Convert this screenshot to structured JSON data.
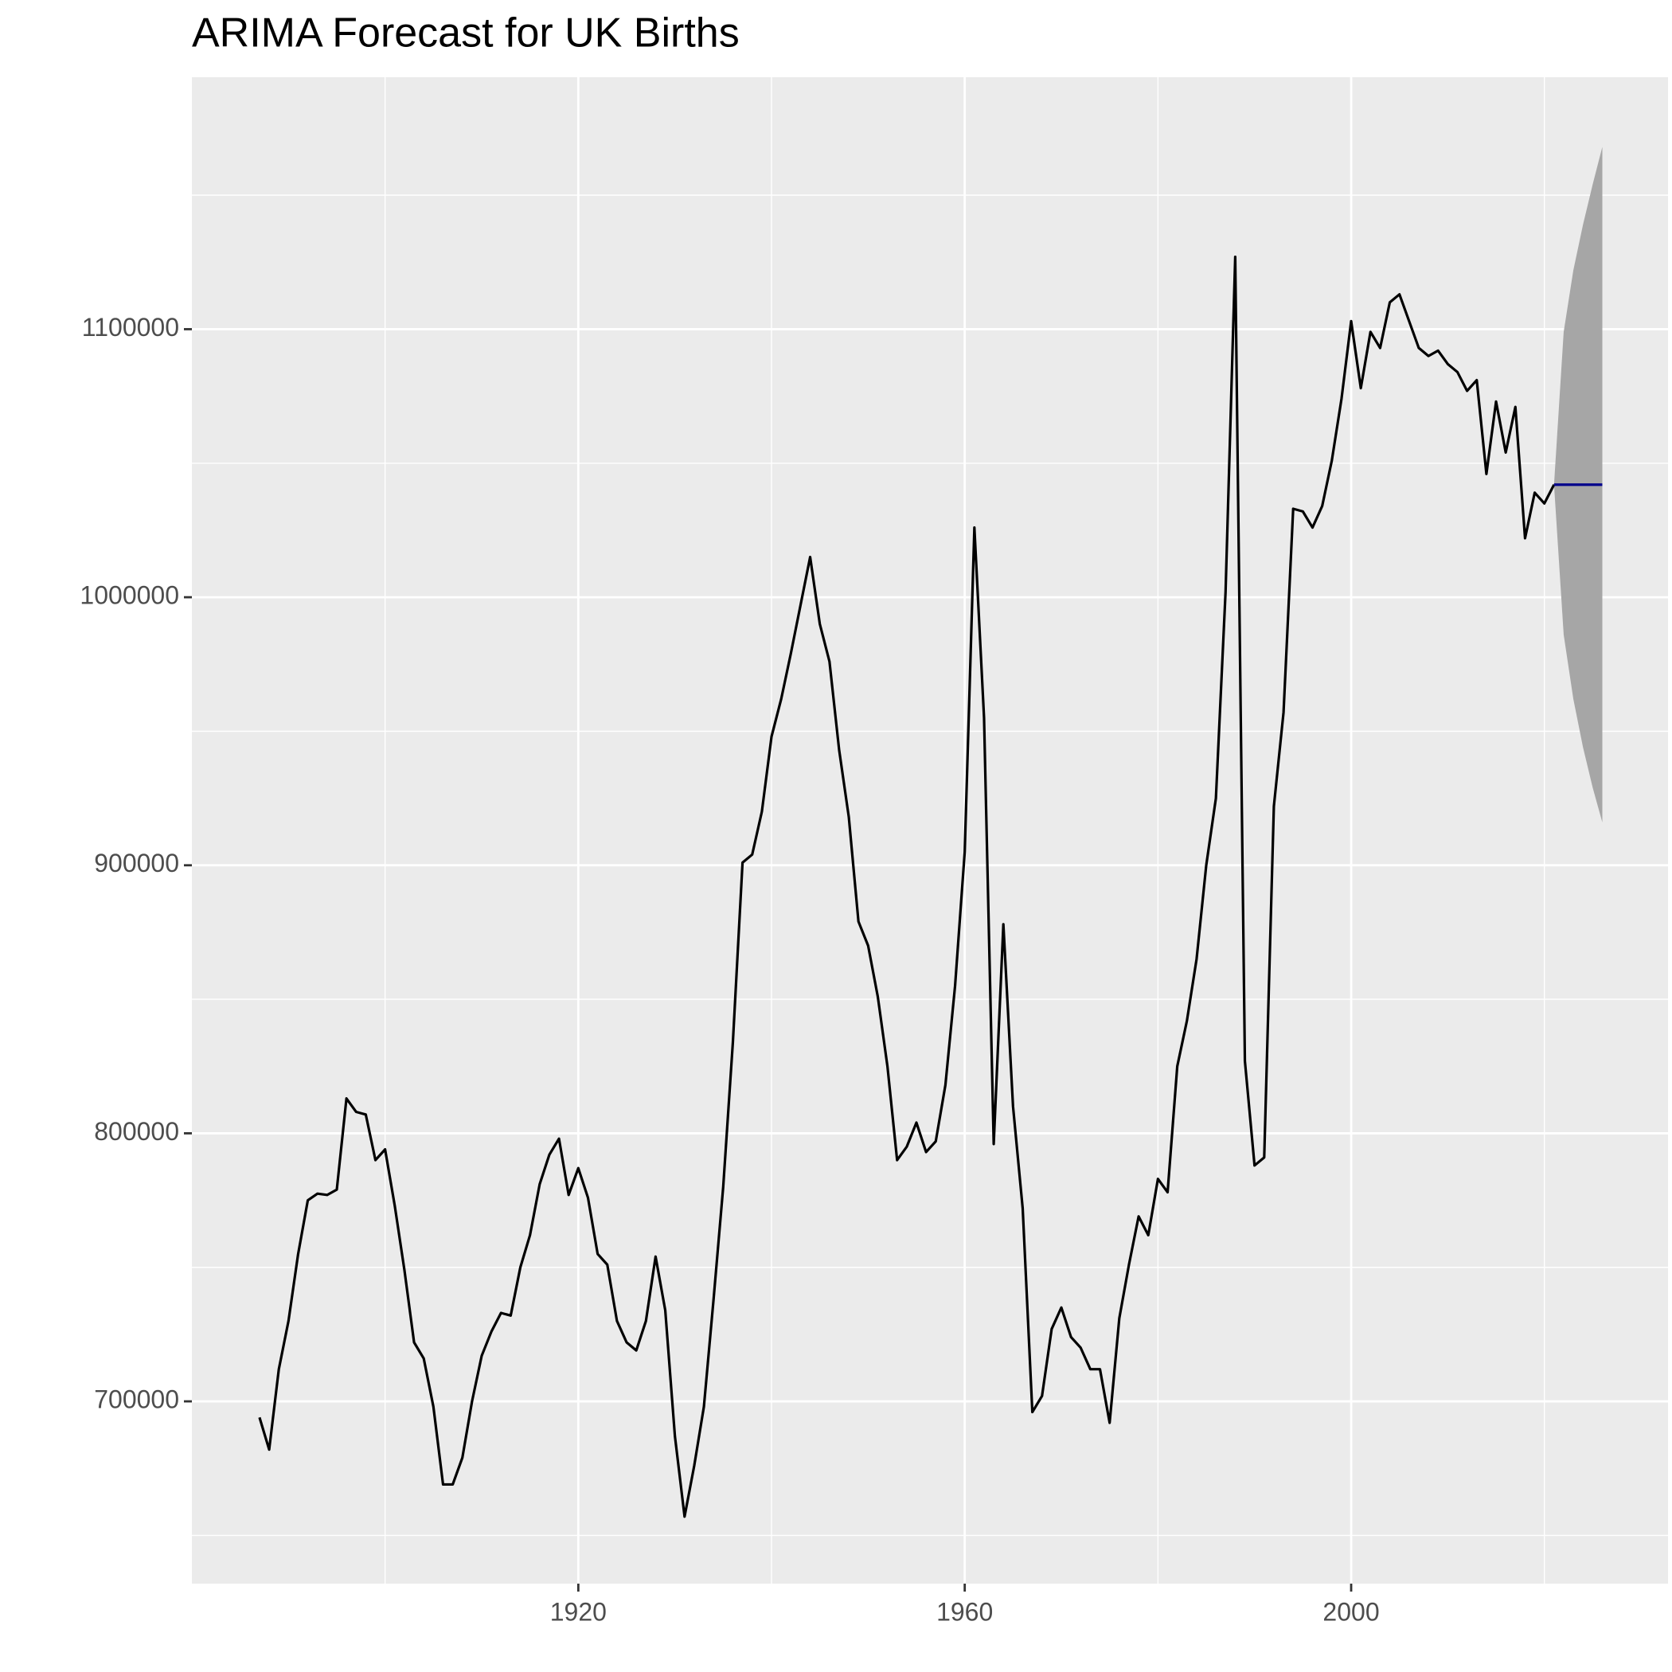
{
  "chart_data": {
    "type": "line",
    "title": "ARIMA Forecast for UK Births",
    "x": [
      1887,
      1888,
      1889,
      1890,
      1891,
      1892,
      1893,
      1894,
      1895,
      1896,
      1897,
      1898,
      1899,
      1900,
      1901,
      1902,
      1903,
      1904,
      1905,
      1906,
      1907,
      1908,
      1909,
      1910,
      1911,
      1912,
      1913,
      1914,
      1915,
      1916,
      1917,
      1918,
      1919,
      1920,
      1921,
      1922,
      1923,
      1924,
      1925,
      1926,
      1927,
      1928,
      1929,
      1930,
      1931,
      1932,
      1933,
      1934,
      1935,
      1936,
      1937,
      1938,
      1939,
      1940,
      1941,
      1942,
      1943,
      1944,
      1945,
      1946,
      1947,
      1948,
      1949,
      1950,
      1951,
      1952,
      1953,
      1954,
      1955,
      1956,
      1957,
      1958,
      1959,
      1960,
      1961,
      1962,
      1963,
      1964,
      1965,
      1966,
      1967,
      1968,
      1969,
      1970,
      1971,
      1972,
      1973,
      1974,
      1975,
      1976,
      1977,
      1978,
      1979,
      1980,
      1981,
      1982,
      1983,
      1984,
      1985,
      1986,
      1987,
      1988,
      1989,
      1990,
      1991,
      1992,
      1993,
      1994,
      1995,
      1996,
      1997,
      1998,
      1999,
      2000,
      2001,
      2002,
      2003,
      2004,
      2005,
      2006,
      2007,
      2008,
      2009,
      2010,
      2011,
      2012,
      2013,
      2014,
      2015,
      2016,
      2017,
      2018,
      2019,
      2020,
      2021
    ],
    "series": [
      {
        "color": "#000000",
        "values": [
          694000,
          682000,
          712000,
          730000,
          755000,
          775000,
          777500,
          777000,
          779000,
          813000,
          808000,
          807000,
          790000,
          794000,
          773000,
          749000,
          722000,
          716000,
          698000,
          669000,
          669000,
          679000,
          700000,
          717000,
          726000,
          733000,
          732000,
          750000,
          762000,
          781000,
          792000,
          798000,
          777000,
          787000,
          776000,
          755000,
          751000,
          730000,
          722000,
          719000,
          730000,
          754000,
          734000,
          687000,
          657000,
          676000,
          698000,
          738000,
          780000,
          834000,
          901000,
          904000,
          920000,
          948000,
          962000,
          979000,
          997000,
          1015000,
          990000,
          976000,
          943000,
          918000,
          879000,
          870000,
          851000,
          825000,
          790000,
          795000,
          804000,
          793000,
          797000,
          818000,
          855000,
          905000,
          1026000,
          955000,
          796000,
          878000,
          810000,
          772000,
          696000,
          702000,
          727000,
          735000,
          724000,
          720000,
          712000,
          712000,
          692000,
          731000,
          751000,
          769000,
          762000,
          783000,
          778000,
          825000,
          842000,
          865000,
          900000,
          925000,
          1002000,
          1127000,
          827000,
          788000,
          791000,
          922000,
          957000,
          1033000,
          1032000,
          1026000,
          1034000,
          1051000,
          1074000,
          1103000,
          1078000,
          1099000,
          1093000,
          1110000,
          1113000,
          1103000,
          1093000,
          1090000,
          1092000,
          1087000,
          1084000,
          1077000,
          1081000,
          1046000,
          1073000,
          1054000,
          1071000,
          1022000,
          1039000,
          1035000,
          1042000
        ]
      }
    ],
    "forecast": {
      "x": [
        2021,
        2022,
        2023,
        2024,
        2025,
        2026
      ],
      "values": [
        1042000,
        1042000,
        1042000,
        1042000,
        1042000,
        1042000
      ],
      "upper": [
        1042000,
        1099000,
        1122000,
        1139000,
        1154000,
        1168000
      ],
      "lower": [
        1042000,
        986000,
        962000,
        944000,
        929000,
        916000
      ],
      "color": "#00008b",
      "band_color": "#a6a6a6"
    },
    "xlim": [
      1880,
      2032.8
    ],
    "ylim": [
      632000,
      1194000
    ],
    "xticks": [
      1920,
      1960,
      2000
    ],
    "yticks": [
      700000,
      800000,
      900000,
      1000000,
      1100000
    ],
    "xminor": [
      1900,
      1940,
      1980,
      2020
    ],
    "yminor": [
      650000,
      750000,
      850000,
      950000,
      1050000,
      1150000
    ],
    "grid": true
  }
}
